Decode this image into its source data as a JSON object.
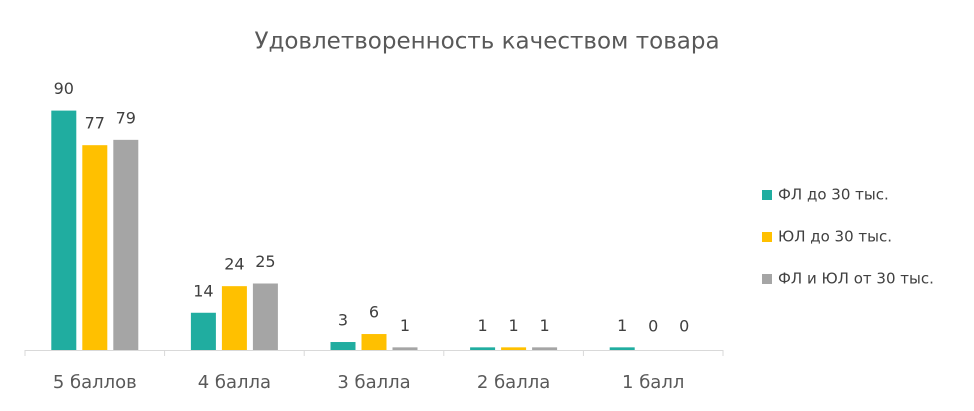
{
  "chart_data": {
    "type": "bar",
    "title": "Удовлетворенность качеством товара",
    "categories": [
      "5 баллов",
      "4 балла",
      "3 балла",
      "2 балла",
      "1 балл"
    ],
    "series": [
      {
        "name": "ФЛ до 30 тыс.",
        "color": "#20ada0",
        "values": [
          90,
          14,
          3,
          1,
          1
        ]
      },
      {
        "name": "ЮЛ до 30 тыс.",
        "color": "#ffc000",
        "values": [
          77,
          24,
          6,
          1,
          0
        ]
      },
      {
        "name": "ФЛ и ЮЛ от 30 тыс.",
        "color": "#a5a5a5",
        "values": [
          79,
          25,
          1,
          1,
          0
        ]
      }
    ],
    "legend": "right"
  }
}
